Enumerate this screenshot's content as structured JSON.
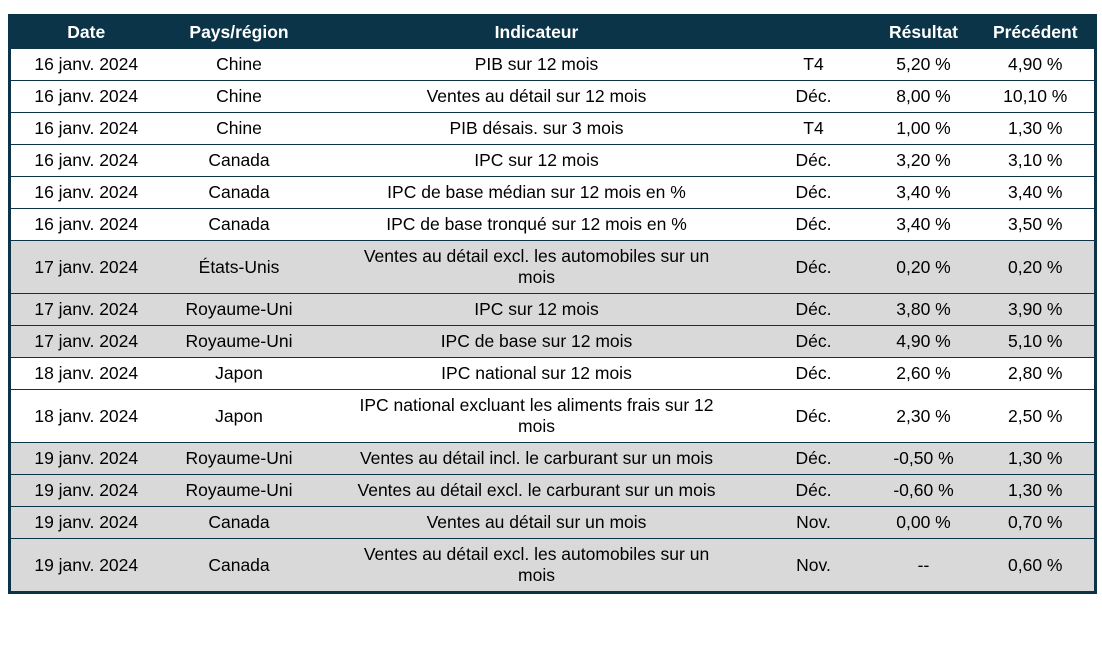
{
  "colors": {
    "header_bg": "#0c3448",
    "header_text": "#ffffff",
    "border": "#0c3448",
    "row_plain_bg": "#ffffff",
    "row_shaded_bg": "#d9d9d9",
    "body_text": "#000000"
  },
  "table": {
    "columns": [
      {
        "key": "date",
        "label": "Date"
      },
      {
        "key": "region",
        "label": "Pays/région"
      },
      {
        "key": "indicator",
        "label": "Indicateur"
      },
      {
        "key": "period",
        "label": ""
      },
      {
        "key": "result",
        "label": "Résultat"
      },
      {
        "key": "previous",
        "label": "Précédent"
      }
    ],
    "rows": [
      {
        "date": "16 janv. 2024",
        "region": "Chine",
        "indicator": "PIB sur 12 mois",
        "period": "T4",
        "result": "5,20 %",
        "previous": "4,90 %"
      },
      {
        "date": "16 janv. 2024",
        "region": "Chine",
        "indicator": "Ventes au détail sur 12 mois",
        "period": "Déc.",
        "result": "8,00 %",
        "previous": "10,10 %"
      },
      {
        "date": "16 janv. 2024",
        "region": "Chine",
        "indicator": "PIB désais. sur 3 mois",
        "period": "T4",
        "result": "1,00 %",
        "previous": "1,30 %"
      },
      {
        "date": "16 janv. 2024",
        "region": "Canada",
        "indicator": "IPC sur 12 mois",
        "period": "Déc.",
        "result": "3,20 %",
        "previous": "3,10 %"
      },
      {
        "date": "16 janv. 2024",
        "region": "Canada",
        "indicator": "IPC de base médian sur 12 mois en %",
        "period": "Déc.",
        "result": "3,40 %",
        "previous": "3,40 %"
      },
      {
        "date": "16 janv. 2024",
        "region": "Canada",
        "indicator": "IPC de base tronqué sur 12 mois en %",
        "period": "Déc.",
        "result": "3,40 %",
        "previous": "3,50 %"
      },
      {
        "date": "17 janv. 2024",
        "region": "États-Unis",
        "indicator": "Ventes au détail excl. les automobiles sur un mois",
        "period": "Déc.",
        "result": "0,20 %",
        "previous": "0,20 %"
      },
      {
        "date": "17 janv. 2024",
        "region": "Royaume-Uni",
        "indicator": "IPC sur 12 mois",
        "period": "Déc.",
        "result": "3,80 %",
        "previous": "3,90 %"
      },
      {
        "date": "17 janv. 2024",
        "region": "Royaume-Uni",
        "indicator": "IPC de base sur 12 mois",
        "period": "Déc.",
        "result": "4,90 %",
        "previous": "5,10 %"
      },
      {
        "date": "18 janv. 2024",
        "region": "Japon",
        "indicator": "IPC national sur 12 mois",
        "period": "Déc.",
        "result": "2,60 %",
        "previous": "2,80 %"
      },
      {
        "date": "18 janv. 2024",
        "region": "Japon",
        "indicator": "IPC national excluant les aliments frais sur 12 mois",
        "period": "Déc.",
        "result": "2,30 %",
        "previous": "2,50 %"
      },
      {
        "date": "19 janv. 2024",
        "region": "Royaume-Uni",
        "indicator": "Ventes au détail incl. le carburant sur un mois",
        "period": "Déc.",
        "result": "-0,50 %",
        "previous": "1,30 %"
      },
      {
        "date": "19 janv. 2024",
        "region": "Royaume-Uni",
        "indicator": "Ventes au détail excl. le carburant sur un mois",
        "period": "Déc.",
        "result": "-0,60 %",
        "previous": "1,30 %"
      },
      {
        "date": "19 janv. 2024",
        "region": "Canada",
        "indicator": "Ventes au détail sur un mois",
        "period": "Nov.",
        "result": "0,00 %",
        "previous": "0,70 %"
      },
      {
        "date": "19 janv. 2024",
        "region": "Canada",
        "indicator": "Ventes au détail excl. les automobiles sur un mois",
        "period": "Nov.",
        "result": "--",
        "previous": "0,60 %"
      }
    ]
  }
}
